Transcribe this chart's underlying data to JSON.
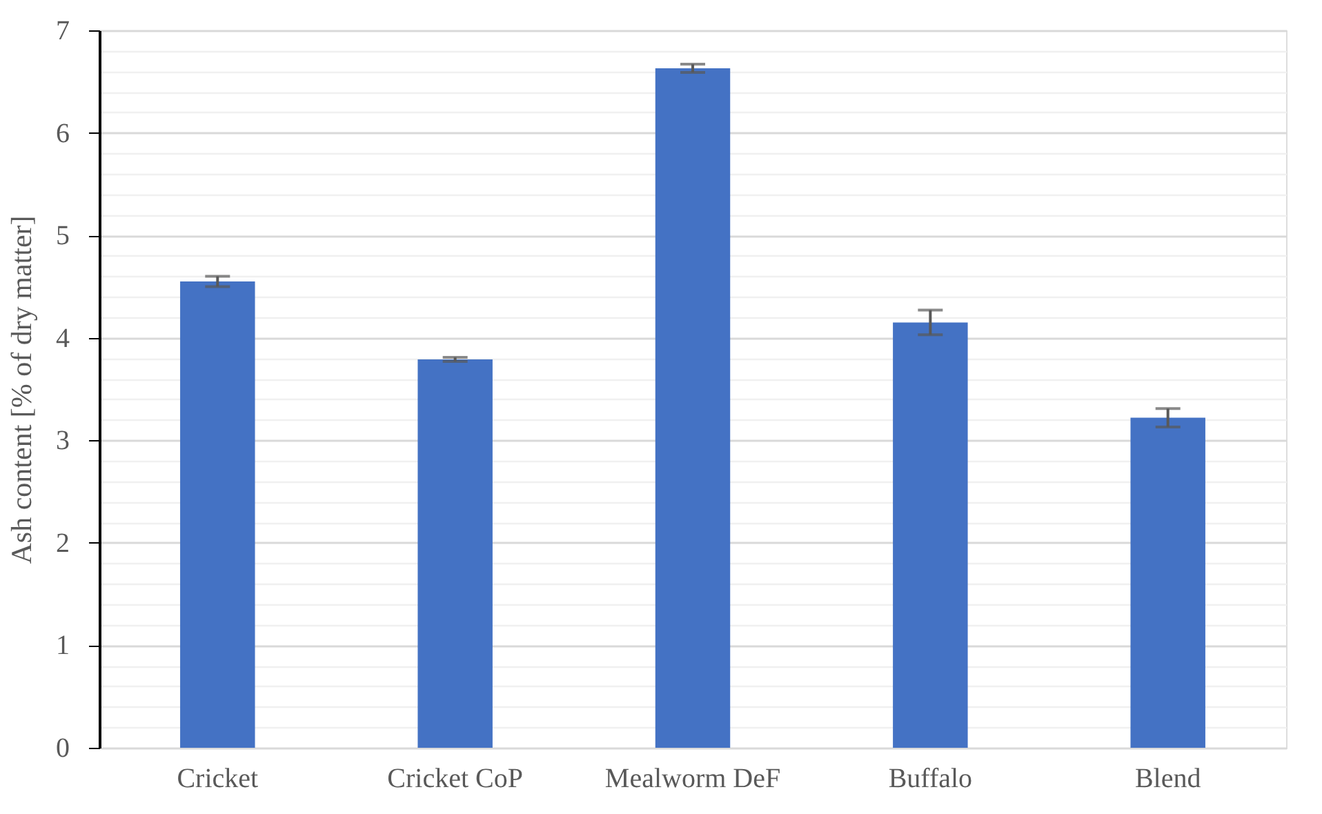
{
  "chart_data": {
    "type": "bar",
    "ylabel": "Ash content [% of dry matter]",
    "categories": [
      "Cricket",
      "Cricket CoP",
      "Mealworm DeF",
      "Buffalo",
      "Blend"
    ],
    "values": [
      4.55,
      3.79,
      6.63,
      4.15,
      3.22
    ],
    "errors": [
      0.05,
      0.02,
      0.04,
      0.12,
      0.09
    ],
    "color": "#4472c4",
    "ylim": [
      0,
      7
    ],
    "yticks": [
      0,
      {
        "value": 0.2,
        "label": null
      },
      {
        "value": 0.4,
        "label": null
      },
      {
        "value": 0.6,
        "label": null
      },
      {
        "value": 0.8,
        "label": null
      },
      1,
      {
        "value": 1.2,
        "label": null
      },
      {
        "value": 1.4,
        "label": null
      },
      {
        "value": 1.6,
        "label": null
      },
      {
        "value": 1.8,
        "label": null
      },
      2,
      {
        "value": 2.2,
        "label": null
      },
      {
        "value": 2.4,
        "label": null
      },
      {
        "value": 2.6,
        "label": null
      },
      {
        "value": 2.8,
        "label": null
      },
      3,
      {
        "value": 3.2,
        "label": null
      },
      {
        "value": 3.4,
        "label": null
      },
      {
        "value": 3.6,
        "label": null
      },
      {
        "value": 3.8,
        "label": null
      },
      4,
      {
        "value": 4.2,
        "label": null
      },
      {
        "value": 4.4,
        "label": null
      },
      {
        "value": 4.6,
        "label": null
      },
      {
        "value": 4.8,
        "label": null
      },
      5,
      {
        "value": 5.2,
        "label": null
      },
      {
        "value": 5.4,
        "label": null
      },
      {
        "value": 5.6,
        "label": null
      },
      {
        "value": 5.8,
        "label": null
      },
      6,
      {
        "value": 6.2,
        "label": null
      },
      {
        "value": 6.4,
        "label": null
      },
      {
        "value": 6.6,
        "label": null
      },
      {
        "value": 6.8,
        "label": null
      },
      7
    ],
    "grid": "y",
    "legend": false
  }
}
